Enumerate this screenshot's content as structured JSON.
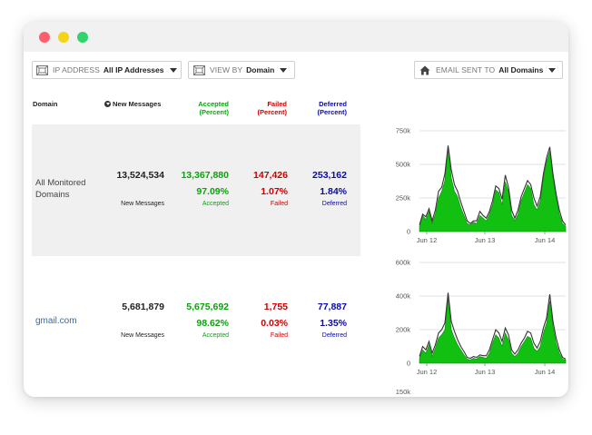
{
  "window": {
    "controls": [
      "close",
      "minimize",
      "maximize"
    ]
  },
  "filters": {
    "ip_address": {
      "label": "IP ADDRESS",
      "value": "All IP Addresses",
      "icon": "server-icon"
    },
    "view_by": {
      "label": "VIEW BY",
      "value": "Domain",
      "icon": "server-icon"
    },
    "email_sent_to": {
      "label": "EMAIL SENT TO",
      "value": "All Domains",
      "icon": "home-icon"
    }
  },
  "columns": {
    "domain": "Domain",
    "new_messages": "New Messages",
    "accepted": [
      "Accepted",
      "(Percent)"
    ],
    "failed": [
      "Failed",
      "(Percent)"
    ],
    "deferred": [
      "Deferred",
      "(Percent)"
    ]
  },
  "colors": {
    "accepted": "#0aa30a",
    "failed": "#cc0000",
    "deferred": "#0a0aa8",
    "chart_fill": "#11c011",
    "chart_line": "#333333"
  },
  "rows": [
    {
      "domain": [
        "All Monitored",
        "Domains"
      ],
      "new_messages": "13,524,534",
      "new_messages_label": "New Messages",
      "accepted": "13,367,880",
      "accepted_pct": "97.09%",
      "accepted_label": "Accepted",
      "failed": "147,426",
      "failed_pct": "1.07%",
      "failed_label": "Failed",
      "deferred": "253,162",
      "deferred_pct": "1.84%",
      "deferred_label": "Deferred"
    },
    {
      "domain": [
        "gmail.com"
      ],
      "new_messages": "5,681,879",
      "new_messages_label": "New Messages",
      "accepted": "5,675,692",
      "accepted_pct": "98.62%",
      "accepted_label": "Accepted",
      "failed": "1,755",
      "failed_pct": "0.03%",
      "failed_label": "Failed",
      "deferred": "77,887",
      "deferred_pct": "1.35%",
      "deferred_label": "Deferred"
    }
  ],
  "chart_data": [
    {
      "type": "area",
      "y_ticks": [
        "0",
        "250k",
        "500k",
        "750k"
      ],
      "ylim": [
        0,
        750000
      ],
      "x_ticks": [
        "Jun 12",
        "Jun 13",
        "Jun 14"
      ],
      "series": [
        {
          "values": [
            40000,
            120000,
            90000,
            150000,
            60000,
            130000,
            250000,
            300000,
            380000,
            640000,
            400000,
            300000,
            260000,
            180000,
            120000,
            60000,
            50000,
            70000,
            60000,
            120000,
            100000,
            80000,
            130000,
            200000,
            310000,
            290000,
            200000,
            370000,
            300000,
            120000,
            80000,
            130000,
            230000,
            290000,
            350000,
            320000,
            200000,
            160000,
            230000,
            400000,
            520000,
            600000,
            400000,
            250000,
            130000,
            60000,
            40000
          ]
        },
        {
          "values": [
            50000,
            130000,
            110000,
            170000,
            80000,
            160000,
            300000,
            330000,
            430000,
            640000,
            460000,
            350000,
            300000,
            220000,
            150000,
            80000,
            60000,
            80000,
            80000,
            150000,
            120000,
            100000,
            150000,
            230000,
            340000,
            320000,
            240000,
            420000,
            330000,
            160000,
            100000,
            160000,
            260000,
            320000,
            380000,
            350000,
            250000,
            190000,
            260000,
            430000,
            550000,
            630000,
            430000,
            280000,
            160000,
            80000,
            50000
          ]
        }
      ]
    },
    {
      "type": "area",
      "y_ticks": [
        "0",
        "200k",
        "400k",
        "600k"
      ],
      "ylim": [
        0,
        600000
      ],
      "x_ticks": [
        "Jun 12",
        "Jun 13",
        "Jun 14"
      ],
      "partial_tick": "150k",
      "series": [
        {
          "values": [
            30000,
            80000,
            60000,
            110000,
            40000,
            90000,
            150000,
            170000,
            200000,
            400000,
            200000,
            150000,
            110000,
            80000,
            50000,
            25000,
            20000,
            30000,
            25000,
            40000,
            35000,
            30000,
            60000,
            120000,
            170000,
            150000,
            100000,
            180000,
            140000,
            60000,
            40000,
            60000,
            100000,
            130000,
            160000,
            150000,
            90000,
            70000,
            100000,
            180000,
            240000,
            370000,
            220000,
            120000,
            60000,
            25000,
            20000
          ]
        },
        {
          "values": [
            40000,
            100000,
            80000,
            130000,
            60000,
            110000,
            180000,
            200000,
            240000,
            420000,
            250000,
            190000,
            140000,
            100000,
            70000,
            35000,
            30000,
            40000,
            35000,
            50000,
            45000,
            45000,
            80000,
            140000,
            200000,
            180000,
            130000,
            210000,
            170000,
            80000,
            55000,
            80000,
            120000,
            150000,
            190000,
            180000,
            120000,
            90000,
            130000,
            210000,
            270000,
            410000,
            250000,
            150000,
            80000,
            35000,
            25000
          ]
        }
      ]
    }
  ]
}
